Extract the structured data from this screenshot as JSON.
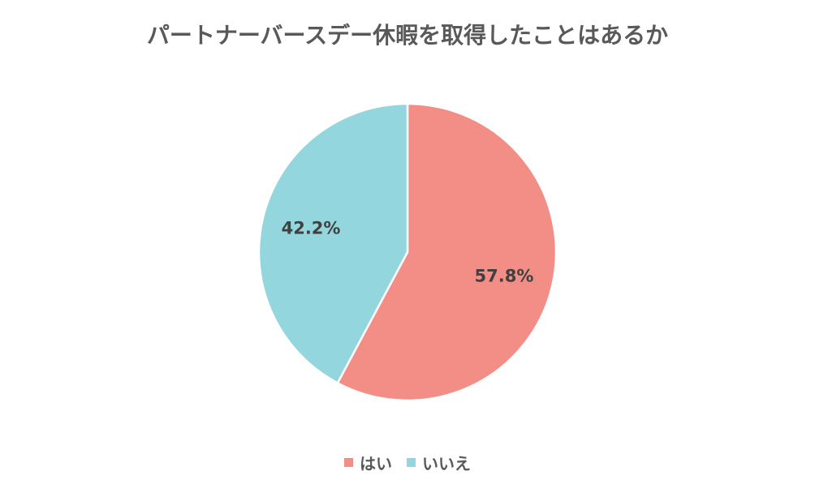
{
  "chart_data": {
    "type": "pie",
    "title": "パートナーバースデー休暇を取得したことはあるか",
    "slices": [
      {
        "label": "はい",
        "value": 57.8,
        "display": "57.8%",
        "color": "#F28E86"
      },
      {
        "label": "いいえ",
        "value": 42.2,
        "display": "42.2%",
        "color": "#93D6DD"
      }
    ],
    "legend_position": "bottom",
    "start_angle_deg": 0,
    "direction": "clockwise"
  }
}
